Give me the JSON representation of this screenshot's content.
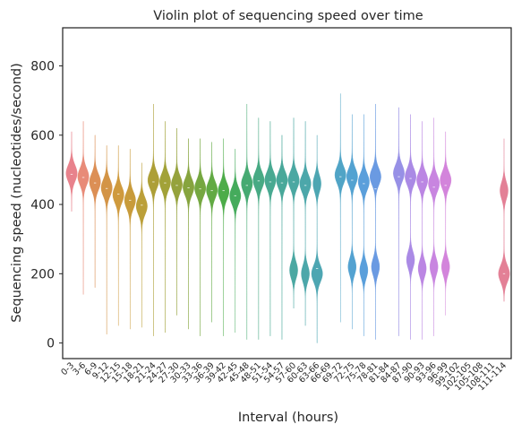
{
  "chart_data": {
    "type": "violin",
    "title": "Violin plot of sequencing speed over time",
    "xlabel": "Interval (hours)",
    "ylabel": "Sequencing speed (nucleotides/second)",
    "ylim": [
      -45,
      910
    ],
    "yticks": [
      0,
      200,
      400,
      600,
      800
    ],
    "grid": false,
    "legend": "none",
    "categories": [
      "0-3",
      "3-6",
      "6-9",
      "9-12",
      "12-15",
      "15-18",
      "18-21",
      "21-24",
      "24-27",
      "27-30",
      "30-33",
      "33-36",
      "36-39",
      "39-42",
      "42-45",
      "45-48",
      "48-51",
      "51-54",
      "54-57",
      "57-60",
      "60-63",
      "63-66",
      "66-69",
      "69-72",
      "72-75",
      "75-78",
      "78-81",
      "81-84",
      "84-87",
      "87-90",
      "90-93",
      "93-96",
      "96-99",
      "99-102",
      "102-105",
      "105-108",
      "108-111",
      "111-114"
    ],
    "colors": [
      "#e8828c",
      "#e88b78",
      "#dc8f55",
      "#d39446",
      "#cf9a3d",
      "#c89b3a",
      "#bb9f39",
      "#ad9f37",
      "#a2a238",
      "#95a23c",
      "#86a43e",
      "#75a740",
      "#62aa44",
      "#4dac49",
      "#45ab5c",
      "#46aa72",
      "#47aa84",
      "#48a991",
      "#49a89a",
      "#4ba8a2",
      "#4ca7aa",
      "#4da6b2",
      "#4fa5bb",
      "#50a4c6",
      "#53a2d1",
      "#5a9fdb",
      "#6a9ae2",
      "#7f95e5",
      "#9790e6",
      "#aa8ae5",
      "#bb86e3",
      "#c885e0",
      "#d384db",
      "#db82d0",
      "#df80c1",
      "#e07fb1",
      "#e27ea2",
      "#e38096"
    ],
    "series": [
      {
        "category": "0-3",
        "median": 487,
        "peaks": [
          490
        ],
        "min": 380,
        "max": 610
      },
      {
        "category": "3-6",
        "median": 478,
        "peaks": [
          480
        ],
        "min": 140,
        "max": 640
      },
      {
        "category": "6-9",
        "median": 462,
        "peaks": [
          465
        ],
        "min": 160,
        "max": 600
      },
      {
        "category": "9-12",
        "median": 446,
        "peaks": [
          448
        ],
        "min": 25,
        "max": 570
      },
      {
        "category": "12-15",
        "median": 430,
        "peaks": [
          428
        ],
        "min": 50,
        "max": 570
      },
      {
        "category": "15-18",
        "median": 412,
        "peaks": [
          412
        ],
        "min": 40,
        "max": 560
      },
      {
        "category": "18-21",
        "median": 398,
        "peaks": [
          395
        ],
        "min": 45,
        "max": 520
      },
      {
        "category": "21-24",
        "median": 465,
        "peaks": [
          470
        ],
        "min": 20,
        "max": 690
      },
      {
        "category": "24-27",
        "median": 462,
        "peaks": [
          465
        ],
        "min": 30,
        "max": 640
      },
      {
        "category": "27-30",
        "median": 455,
        "peaks": [
          458
        ],
        "min": 80,
        "max": 620
      },
      {
        "category": "30-33",
        "median": 448,
        "peaks": [
          450
        ],
        "min": 40,
        "max": 590
      },
      {
        "category": "33-36",
        "median": 445,
        "peaks": [
          447
        ],
        "min": 20,
        "max": 590
      },
      {
        "category": "36-39",
        "median": 440,
        "peaks": [
          442
        ],
        "min": 60,
        "max": 580
      },
      {
        "category": "39-42",
        "median": 440,
        "peaks": [
          438
        ],
        "min": 20,
        "max": 590
      },
      {
        "category": "42-45",
        "median": 425,
        "peaks": [
          425
        ],
        "min": 30,
        "max": 560
      },
      {
        "category": "45-48",
        "median": 455,
        "peaks": [
          460
        ],
        "min": 10,
        "max": 690
      },
      {
        "category": "48-51",
        "median": 468,
        "peaks": [
          470
        ],
        "min": 10,
        "max": 650
      },
      {
        "category": "51-54",
        "median": 465,
        "peaks": [
          470
        ],
        "min": 20,
        "max": 640
      },
      {
        "category": "54-57",
        "median": 462,
        "peaks": [
          470
        ],
        "min": 10,
        "max": 600
      },
      {
        "category": "57-60",
        "median": 465,
        "peaks": [
          470,
          210
        ],
        "min": 100,
        "max": 650
      },
      {
        "category": "60-63",
        "median": 455,
        "peaks": [
          460,
          200
        ],
        "min": 50,
        "max": 640
      },
      {
        "category": "63-66",
        "median": 215,
        "peaks": [
          200,
          460
        ],
        "min": 0,
        "max": 600
      },
      {
        "category": "66-69",
        "median": null,
        "peaks": [],
        "min": null,
        "max": null
      },
      {
        "category": "69-72",
        "median": 480,
        "peaks": [
          485
        ],
        "min": 60,
        "max": 720
      },
      {
        "category": "72-75",
        "median": 470,
        "peaks": [
          480,
          220
        ],
        "min": 40,
        "max": 660
      },
      {
        "category": "75-78",
        "median": 460,
        "peaks": [
          465,
          210
        ],
        "min": 20,
        "max": 660
      },
      {
        "category": "78-81",
        "median": 445,
        "peaks": [
          480,
          220
        ],
        "min": 10,
        "max": 690
      },
      {
        "category": "81-84",
        "median": null,
        "peaks": [],
        "min": null,
        "max": null
      },
      {
        "category": "84-87",
        "median": 480,
        "peaks": [
          490
        ],
        "min": 20,
        "max": 680
      },
      {
        "category": "87-90",
        "median": 475,
        "peaks": [
          480,
          240
        ],
        "min": 10,
        "max": 660
      },
      {
        "category": "90-93",
        "median": 465,
        "peaks": [
          470,
          215
        ],
        "min": 10,
        "max": 640
      },
      {
        "category": "93-96",
        "median": 450,
        "peaks": [
          460,
          220
        ],
        "min": 20,
        "max": 650
      },
      {
        "category": "96-99",
        "median": 455,
        "peaks": [
          470,
          220
        ],
        "min": 80,
        "max": 610
      },
      {
        "category": "99-102",
        "median": null,
        "peaks": [],
        "min": null,
        "max": null
      },
      {
        "category": "102-105",
        "median": null,
        "peaks": [],
        "min": null,
        "max": null
      },
      {
        "category": "105-108",
        "median": null,
        "peaks": [],
        "min": null,
        "max": null
      },
      {
        "category": "108-111",
        "median": null,
        "peaks": [],
        "min": null,
        "max": null
      },
      {
        "category": "111-114",
        "median": 200,
        "peaks": [
          200,
          440
        ],
        "min": 120,
        "max": 590
      }
    ]
  }
}
